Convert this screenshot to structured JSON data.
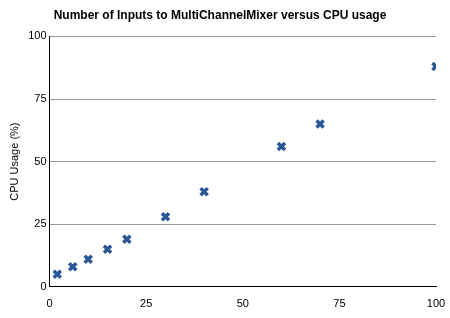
{
  "chart_data": {
    "type": "scatter",
    "title": "Number of Inputs to MultiChannelMixer versus CPU usage",
    "y_label": "CPU Usage (%)",
    "x": [
      2,
      6,
      10,
      15,
      20,
      30,
      40,
      60,
      70,
      100
    ],
    "values": [
      5,
      8,
      11,
      15,
      19,
      28,
      38,
      56,
      65,
      88
    ],
    "color": "#2b5797",
    "marker": "x",
    "xlim": [
      0,
      100
    ],
    "xticks": [
      0,
      25,
      50,
      75,
      100
    ],
    "ylim": [
      0,
      100
    ],
    "yticks": [
      0,
      25,
      50,
      75,
      100
    ],
    "grid": true
  }
}
